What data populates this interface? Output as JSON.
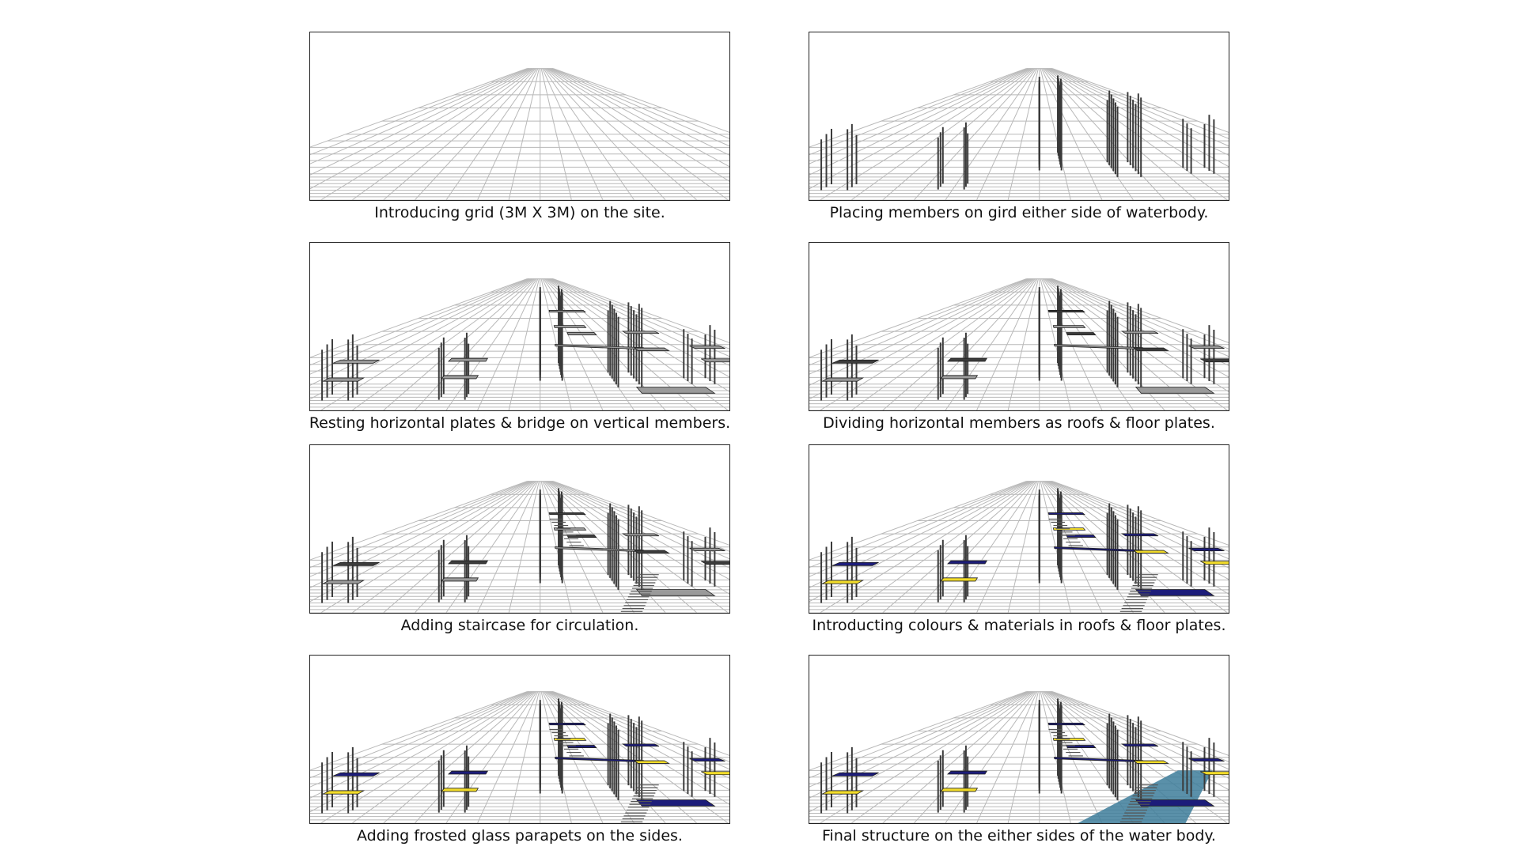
{
  "panels": [
    {
      "caption": "Introducing grid (3M X 3M) on the site.",
      "stage": 1
    },
    {
      "caption": "Placing members on gird either side of waterbody.",
      "stage": 2
    },
    {
      "caption": "Resting horizontal plates & bridge on vertical members.",
      "stage": 3
    },
    {
      "caption": "Dividing horizontal members as roofs & floor plates.",
      "stage": 4
    },
    {
      "caption": "Adding staircase for circulation.",
      "stage": 5
    },
    {
      "caption": "Introducting colours & materials in roofs & floor plates.",
      "stage": 6
    },
    {
      "caption": "Adding frosted glass parapets on the sides.",
      "stage": 7
    },
    {
      "caption": "Final structure on the either sides of the water body.",
      "stage": 8
    }
  ],
  "colors": {
    "grid": "#b8b8b8",
    "column": "#3a3a3a",
    "plate_grey": "#9a9a9a",
    "plate_dark": "#3c3c3c",
    "roof_blue": "#1c1c7a",
    "floor_yellow": "#f2dc2a",
    "water": "#3d7d9a"
  }
}
